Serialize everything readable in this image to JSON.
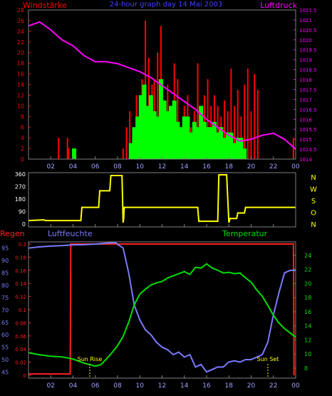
{
  "header": {
    "left_title": "Windstärke",
    "center_title": "24-hour graph day 14 Mai 2003",
    "right_title": "Luftdruck"
  },
  "colors": {
    "background": "#000000",
    "frame": "#808080",
    "gust": "#ff0000",
    "wind": "#00ff00",
    "pressure": "#ff00ff",
    "direction": "#ffff00",
    "humidity": "#7a7aff",
    "temperature": "#00dd00",
    "rain": "#ff2020",
    "sun_markers": "#ffff00"
  },
  "x_ticks": [
    "02",
    "04",
    "06",
    "08",
    "10",
    "12",
    "14",
    "16",
    "18",
    "20",
    "22",
    "00"
  ],
  "chart_data": [
    {
      "type": "bar",
      "name": "wind",
      "x_range_hours": [
        0,
        24
      ],
      "left_axis": {
        "label": "Windstärke",
        "ylim": [
          0,
          28
        ],
        "ticks": [
          "0",
          "2",
          "4",
          "6",
          "8",
          "10",
          "12",
          "14",
          "16",
          "18",
          "20",
          "22",
          "24",
          "26",
          "28"
        ]
      },
      "right_axis": {
        "label": "Luftdruck",
        "ylim": [
          1014,
          1021.5
        ],
        "ticks": [
          "1014",
          "1014.5",
          "1015",
          "1015.5",
          "1016",
          "1016.5",
          "1017",
          "1017.5",
          "1018",
          "1018.5",
          "1019",
          "1019.5",
          "1020",
          "1020.5",
          "1021",
          "1021.5"
        ]
      },
      "gust_hours": [
        2.7,
        3.5,
        3.6,
        8.5,
        8.8,
        9.1,
        9.4,
        9.7,
        10.0,
        10.2,
        10.5,
        10.8,
        11.1,
        11.3,
        11.6,
        11.9,
        12.2,
        12.5,
        12.8,
        13.1,
        13.4,
        13.7,
        14.0,
        14.3,
        14.6,
        14.9,
        15.2,
        15.5,
        15.8,
        16.1,
        16.4,
        16.7,
        17.0,
        17.3,
        17.6,
        17.9,
        18.2,
        18.5,
        18.8,
        19.1,
        19.4,
        19.7,
        20.0,
        20.3,
        20.6,
        23.8
      ],
      "gust_values": [
        4,
        4,
        2,
        2,
        6,
        9,
        5,
        12,
        8,
        15,
        26,
        19,
        14,
        15,
        20,
        25,
        11,
        14,
        8,
        18,
        15,
        6,
        10,
        12,
        6,
        9,
        18,
        5,
        12,
        15,
        10,
        12,
        10,
        8,
        11,
        9,
        17,
        10,
        13,
        8,
        14,
        17,
        9,
        16,
        13,
        4
      ],
      "wind_hours": [
        4.1,
        9.2,
        9.5,
        9.8,
        10.1,
        10.4,
        10.7,
        11.0,
        11.3,
        11.6,
        11.9,
        12.2,
        12.5,
        12.8,
        13.1,
        13.4,
        13.7,
        14.0,
        14.3,
        14.6,
        14.9,
        15.2,
        15.5,
        15.8,
        16.1,
        16.4,
        16.7,
        17.0,
        17.3,
        17.6,
        17.9,
        18.2,
        18.5,
        18.8,
        19.1,
        19.4
      ],
      "wind_values": [
        2,
        3,
        6,
        8,
        12,
        14,
        10,
        12,
        9,
        8,
        15,
        11,
        9,
        10,
        11,
        7,
        6,
        8,
        8,
        5,
        7,
        6,
        10,
        7,
        6,
        6,
        7,
        5,
        6,
        4,
        5,
        5,
        3,
        4,
        4,
        2
      ],
      "pressure_hours": [
        0,
        1,
        2,
        3,
        4,
        5,
        6,
        7,
        8,
        9,
        10,
        11,
        12,
        13,
        14,
        15,
        16,
        17,
        18,
        19,
        20,
        21,
        22,
        23,
        24
      ],
      "pressure_values": [
        1020.7,
        1020.9,
        1020.5,
        1020.0,
        1019.7,
        1019.2,
        1018.9,
        1018.9,
        1018.8,
        1018.6,
        1018.4,
        1018.1,
        1017.7,
        1017.3,
        1016.9,
        1016.5,
        1016.0,
        1015.6,
        1015.2,
        1014.9,
        1015.0,
        1015.2,
        1015.3,
        1015.0,
        1014.5
      ]
    },
    {
      "type": "line",
      "name": "direction",
      "x_range_hours": [
        0,
        24
      ],
      "left_axis": {
        "ylim": [
          0,
          360
        ],
        "ticks": [
          "0",
          "90",
          "180",
          "270",
          "360"
        ]
      },
      "right_axis": {
        "ticks": [
          "N",
          "W",
          "S",
          "O",
          "N"
        ]
      },
      "hours": [
        0,
        1.4,
        1.5,
        4.7,
        4.8,
        6.3,
        6.4,
        7.3,
        7.4,
        8.4,
        8.5,
        8.55,
        8.6,
        9.0,
        15.2,
        15.3,
        17.0,
        17.1,
        17.8,
        18.0,
        18.1,
        18.7,
        18.8,
        19.4,
        19.5,
        24
      ],
      "values": [
        25,
        30,
        25,
        25,
        120,
        120,
        240,
        240,
        350,
        350,
        10,
        40,
        120,
        120,
        120,
        20,
        20,
        355,
        355,
        10,
        40,
        40,
        80,
        80,
        120,
        120
      ]
    },
    {
      "type": "line",
      "name": "climate",
      "x_range_hours": [
        0,
        24
      ],
      "legend": {
        "rain": "Regen",
        "humidity": "Luftfeuchte",
        "temperature": "Temperatur"
      },
      "rain_axis": {
        "ylim": [
          0,
          0.2
        ],
        "ticks": [
          "0",
          "0.02",
          "0.04",
          "0.06",
          "0.08",
          "0.1",
          "0.12",
          "0.14",
          "0.16",
          "0.18",
          "0.2"
        ]
      },
      "humidity_axis": {
        "ylim": [
          42.5,
          97.5
        ],
        "ticks": [
          "45",
          "50",
          "55",
          "60",
          "65",
          "70",
          "75",
          "80",
          "85",
          "90",
          "95"
        ]
      },
      "temperature_axis": {
        "ylim": [
          8,
          25
        ],
        "ticks": [
          "8",
          "10",
          "12",
          "14",
          "16",
          "18",
          "20",
          "22",
          "24"
        ]
      },
      "rain_hours": [
        0,
        3.75,
        3.8,
        23.8,
        23.85
      ],
      "rain_values": [
        0.002,
        0.002,
        0.2,
        0.2,
        0
      ],
      "humidity_hours": [
        0,
        1,
        2,
        3,
        4,
        5,
        6,
        7,
        7.8,
        8.5,
        9.0,
        9.5,
        10,
        10.5,
        11,
        11.5,
        12,
        12.5,
        13,
        13.5,
        14,
        14.5,
        15,
        15.5,
        16,
        16.5,
        17,
        17.5,
        18,
        18.5,
        19,
        19.5,
        20,
        20.5,
        21,
        21.5,
        22,
        22.5,
        23,
        23.5,
        24
      ],
      "humidity_values": [
        95,
        95.5,
        95.8,
        96,
        96.3,
        96.4,
        96.6,
        97,
        97.2,
        95,
        85,
        72,
        66,
        62,
        60,
        57,
        55,
        54,
        52,
        53,
        51,
        52,
        47,
        48,
        45,
        46,
        47,
        47,
        49,
        49.5,
        49,
        50,
        50,
        51,
        52,
        57,
        68,
        77,
        85,
        86,
        86
      ],
      "temperature_hours": [
        0,
        1,
        2,
        3,
        4,
        5,
        6,
        6.5,
        7,
        7.5,
        8,
        8.5,
        9,
        9.5,
        10,
        10.5,
        11,
        11.5,
        12,
        12.5,
        13,
        13.5,
        14,
        14.5,
        15,
        15.5,
        16,
        16.5,
        17,
        17.5,
        18,
        18.5,
        19,
        19.5,
        20,
        20.5,
        21,
        21.5,
        22,
        22.5,
        23,
        23.5,
        24
      ],
      "temperature_values": [
        10.2,
        9.9,
        9.7,
        9.6,
        9.3,
        8.7,
        8.3,
        8.5,
        9.3,
        10.2,
        11.2,
        12.5,
        14.5,
        17,
        18.5,
        19.2,
        19.8,
        20.1,
        20.3,
        20.8,
        21.1,
        21.4,
        21.7,
        21.3,
        22.3,
        22.2,
        22.8,
        22.2,
        21.9,
        21.5,
        21.6,
        21.4,
        21.5,
        20.8,
        20.2,
        19.1,
        18.2,
        16.9,
        15.5,
        14.4,
        13.6,
        13.0,
        12.4
      ],
      "annotations": {
        "sun_rise_label": "Sun Rise",
        "sun_rise_hour": 5.5,
        "sun_set_label": "Sun Set",
        "sun_set_hour": 21.5
      }
    }
  ]
}
